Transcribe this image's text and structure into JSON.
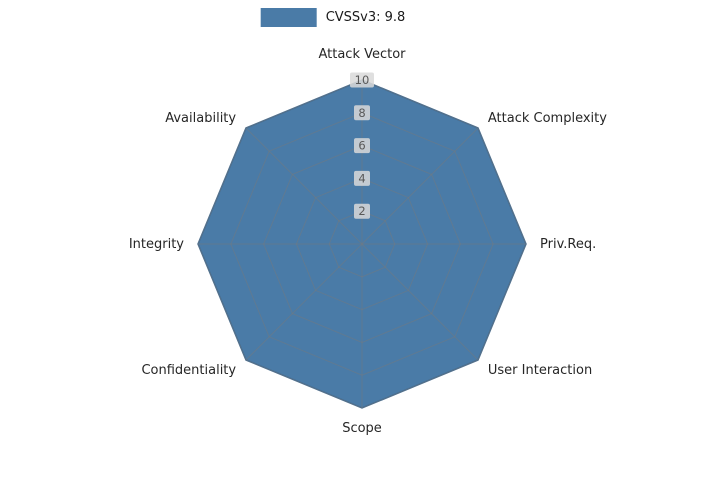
{
  "chart_data": {
    "type": "radar",
    "title": "",
    "categories": [
      "Attack Vector",
      "Attack Complexity",
      "Priv.Req.",
      "User Interaction",
      "Scope",
      "Confidentiality",
      "Integrity",
      "Availability"
    ],
    "series": [
      {
        "name": "CVSSv3: 9.8",
        "values": [
          10,
          10,
          10,
          10,
          10,
          10,
          10,
          10
        ]
      }
    ],
    "radial_ticks": [
      2,
      4,
      6,
      8,
      10
    ],
    "rlim": [
      0,
      10
    ],
    "grid": true,
    "legend_position": "top-center",
    "colors": {
      "fill": "#4a7ba7",
      "stroke": "#3d6a94",
      "grid": "#7a7a7a",
      "axis_label": "#262626",
      "tick_label": "#595959",
      "tick_bg": "#d9d9d9"
    }
  }
}
